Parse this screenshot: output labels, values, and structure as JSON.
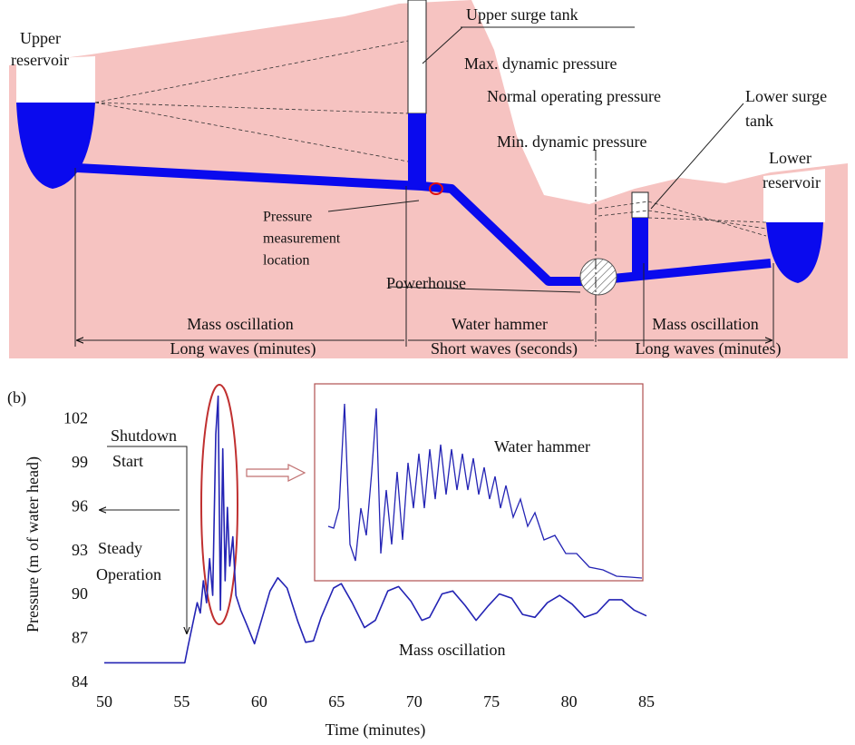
{
  "diagram": {
    "upper_reservoir": [
      "Upper",
      "reservoir"
    ],
    "upper_surge_tank": "Upper surge tank",
    "max_pressure": "Max. dynamic pressure",
    "normal_pressure": "Normal operating pressure",
    "min_pressure": "Min. dynamic pressure",
    "lower_surge_tank": [
      "Lower surge",
      "tank"
    ],
    "lower_reservoir": [
      "Lower",
      "reservoir"
    ],
    "measurement": [
      "Pressure",
      "measurement",
      "location"
    ],
    "powerhouse": "Powerhouse",
    "zones": [
      [
        "Mass oscillation",
        "Long waves (minutes)"
      ],
      [
        "Water hammer",
        "Short waves (seconds)"
      ],
      [
        "Mass  oscillation",
        "Long waves (minutes)"
      ]
    ]
  },
  "chart_data": {
    "type": "line",
    "panel_label": "(b)",
    "x_label": "Time (minutes)",
    "y_label": "Pressure (m of water head)",
    "x": [
      50,
      52,
      54,
      55.2,
      55.4,
      55.6,
      55.8,
      56,
      56.2,
      56.4,
      56.6,
      56.8,
      57,
      57.2,
      57.35,
      57.5,
      57.65,
      57.8,
      57.95,
      58.1,
      58.3,
      58.5,
      58.8,
      59.2,
      59.7,
      60.2,
      60.7,
      61.2,
      61.8,
      62.5,
      63,
      63.5,
      64,
      64.8,
      65.3,
      66,
      66.8,
      67.5,
      68.3,
      69,
      69.8,
      70.5,
      71,
      71.8,
      72.5,
      73.3,
      74,
      74.8,
      75.5,
      76.3,
      77,
      77.8,
      78.6,
      79.4,
      80.2,
      81,
      81.8,
      82.6,
      83.4,
      84.2,
      85
    ],
    "series": [
      {
        "color": "#2323b4",
        "values": [
          85.4,
          85.4,
          85.4,
          85.4,
          86.5,
          87.5,
          88.5,
          89.5,
          88.8,
          91,
          89.5,
          92.5,
          90,
          101,
          103.6,
          89,
          100,
          91,
          96,
          92,
          94,
          90,
          89,
          88,
          86.7,
          88.5,
          90.3,
          91.2,
          90.5,
          88.2,
          86.8,
          86.9,
          88.5,
          90.5,
          90.8,
          89.5,
          87.8,
          88.3,
          90.3,
          90.6,
          89.6,
          88.3,
          88.5,
          90.1,
          90.3,
          89.3,
          88.3,
          89.3,
          90.1,
          89.8,
          88.7,
          88.5,
          89.5,
          90,
          89.4,
          88.5,
          88.8,
          89.7,
          89.7,
          89,
          88.6
        ]
      }
    ],
    "xlim": [
      50,
      85
    ],
    "xticks": [
      50,
      55,
      60,
      65,
      70,
      75,
      80,
      85
    ],
    "ylim": [
      84,
      104
    ],
    "yticks": [
      84,
      87,
      90,
      93,
      96,
      99,
      102
    ],
    "annotations": {
      "shutdown": "Shutdown",
      "start": "Start",
      "steady": "Steady",
      "operation": "Operation",
      "inset": "Water hammer",
      "mass": "Mass oscillation"
    }
  }
}
